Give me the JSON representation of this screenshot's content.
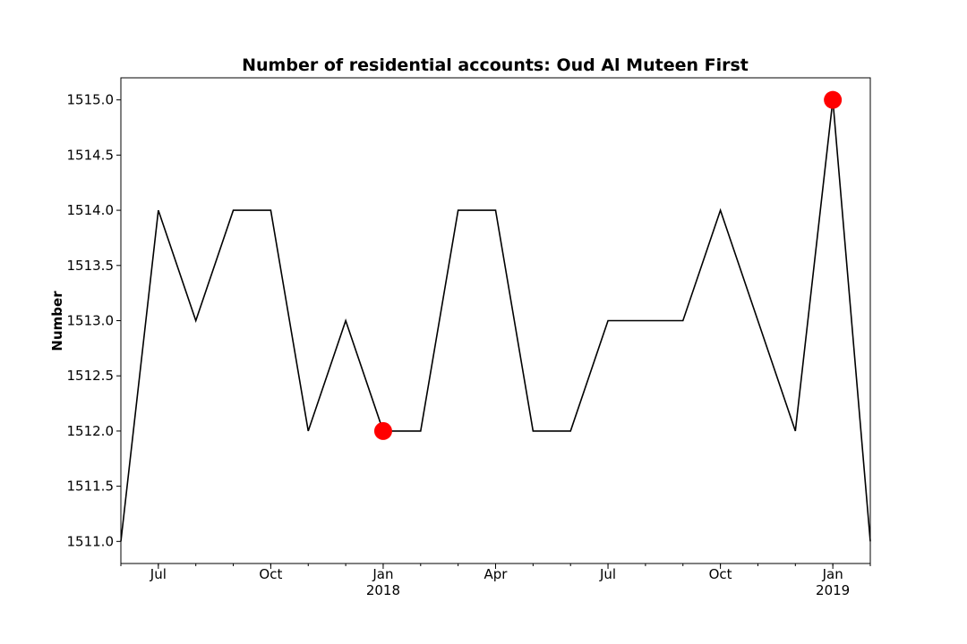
{
  "chart_data": {
    "type": "line",
    "title": "Number of residential accounts: Oud Al Muteen First",
    "xlabel": "",
    "ylabel": "Number",
    "ylim": [
      1510.8,
      1515.2
    ],
    "yticks": [
      1511.0,
      1511.5,
      1512.0,
      1512.5,
      1513.0,
      1513.5,
      1514.0,
      1514.5,
      1515.0
    ],
    "ytick_labels": [
      "1511.0",
      "1511.5",
      "1512.0",
      "1512.5",
      "1513.0",
      "1513.5",
      "1514.0",
      "1514.5",
      "1515.0"
    ],
    "x": [
      "2017-06",
      "2017-07",
      "2017-08",
      "2017-09",
      "2017-10",
      "2017-11",
      "2017-12",
      "2018-01",
      "2018-02",
      "2018-03",
      "2018-04",
      "2018-05",
      "2018-06",
      "2018-07",
      "2018-08",
      "2018-09",
      "2018-10",
      "2018-11",
      "2018-12",
      "2019-01",
      "2019-02"
    ],
    "xlim": [
      "2017-06",
      "2019-02"
    ],
    "major_ticks": [
      {
        "x": "2017-07",
        "label": "Jul",
        "sub": ""
      },
      {
        "x": "2017-10",
        "label": "Oct",
        "sub": ""
      },
      {
        "x": "2018-01",
        "label": "Jan",
        "sub": "2018"
      },
      {
        "x": "2018-04",
        "label": "Apr",
        "sub": ""
      },
      {
        "x": "2018-07",
        "label": "Jul",
        "sub": ""
      },
      {
        "x": "2018-10",
        "label": "Oct",
        "sub": ""
      },
      {
        "x": "2019-01",
        "label": "Jan",
        "sub": "2019"
      }
    ],
    "series": [
      {
        "values": [
          1511,
          1514,
          1513,
          1514,
          1514,
          1512,
          1513,
          1512,
          1512,
          1514,
          1514,
          1512,
          1512,
          1513,
          1513,
          1513,
          1514,
          1513,
          1512,
          1515,
          1511
        ],
        "color": "#000000"
      }
    ],
    "highlights": [
      {
        "x": "2018-01",
        "y": 1512,
        "color": "#ff0000"
      },
      {
        "x": "2019-01",
        "y": 1515,
        "color": "#ff0000"
      }
    ],
    "grid": false
  }
}
